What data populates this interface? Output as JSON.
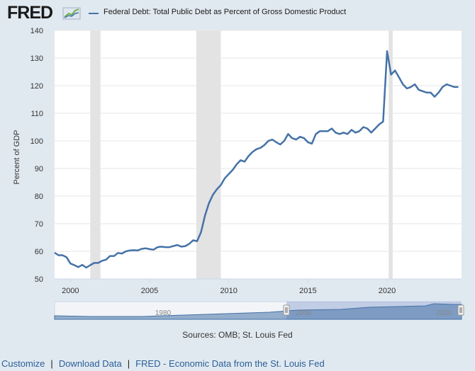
{
  "header": {
    "logo_text": "FRED",
    "title": "Federal Debt: Total Public Debt as Percent of Gross Domestic Product"
  },
  "footer": {
    "sources": "Sources: OMB; St. Louis Fed",
    "links": [
      "Customize",
      "Download Data",
      "FRED - Economic Data from the St. Louis Fed"
    ]
  },
  "colors": {
    "series": "#4572a7",
    "recession": "#e3e3e3",
    "background": "#e1e9f0",
    "plot": "#ffffff",
    "link": "#2a6099"
  },
  "chart_data": {
    "type": "line",
    "title": "Federal Debt: Total Public Debt as Percent of Gross Domestic Product",
    "ylabel": "Percent of GDP",
    "xlabel": "",
    "xlim": [
      1999.0,
      2024.7
    ],
    "ylim": [
      50,
      140
    ],
    "yticks": [
      50,
      60,
      70,
      80,
      90,
      100,
      110,
      120,
      130,
      140
    ],
    "xticks": [
      2000,
      2005,
      2010,
      2015,
      2020
    ],
    "grid": true,
    "recessions": [
      [
        2001.25,
        2001.9
      ],
      [
        2007.95,
        2009.5
      ],
      [
        2020.1,
        2020.35
      ]
    ],
    "series": [
      {
        "name": "Federal Debt: Total Public Debt as Percent of Gross Domestic Product",
        "x": [
          1999.0,
          1999.25,
          1999.5,
          1999.75,
          2000.0,
          2000.25,
          2000.5,
          2000.75,
          2001.0,
          2001.25,
          2001.5,
          2001.75,
          2002.0,
          2002.25,
          2002.5,
          2002.75,
          2003.0,
          2003.25,
          2003.5,
          2003.75,
          2004.0,
          2004.25,
          2004.5,
          2004.75,
          2005.0,
          2005.25,
          2005.5,
          2005.75,
          2006.0,
          2006.25,
          2006.5,
          2006.75,
          2007.0,
          2007.25,
          2007.5,
          2007.75,
          2008.0,
          2008.25,
          2008.5,
          2008.75,
          2009.0,
          2009.25,
          2009.5,
          2009.75,
          2010.0,
          2010.25,
          2010.5,
          2010.75,
          2011.0,
          2011.25,
          2011.5,
          2011.75,
          2012.0,
          2012.25,
          2012.5,
          2012.75,
          2013.0,
          2013.25,
          2013.5,
          2013.75,
          2014.0,
          2014.25,
          2014.5,
          2014.75,
          2015.0,
          2015.25,
          2015.5,
          2015.75,
          2016.0,
          2016.25,
          2016.5,
          2016.75,
          2017.0,
          2017.25,
          2017.5,
          2017.75,
          2018.0,
          2018.25,
          2018.5,
          2018.75,
          2019.0,
          2019.25,
          2019.5,
          2019.75,
          2020.0,
          2020.25,
          2020.5,
          2020.75,
          2021.0,
          2021.25,
          2021.5,
          2021.75,
          2022.0,
          2022.25,
          2022.5,
          2022.75,
          2023.0,
          2023.25,
          2023.5,
          2023.75,
          2024.0,
          2024.25,
          2024.5
        ],
        "y": [
          59.5,
          58.6,
          58.6,
          57.9,
          55.6,
          55.0,
          54.3,
          55.1,
          54.1,
          55.0,
          55.8,
          55.8,
          56.6,
          57.0,
          58.3,
          58.3,
          59.4,
          59.2,
          60.0,
          60.3,
          60.4,
          60.3,
          60.9,
          61.1,
          60.8,
          60.6,
          61.5,
          61.7,
          61.5,
          61.5,
          61.9,
          62.3,
          61.7,
          61.9,
          62.7,
          64.0,
          63.7,
          67.0,
          73.0,
          77.5,
          80.5,
          82.5,
          84.0,
          86.5,
          88.0,
          89.5,
          91.5,
          93.0,
          92.5,
          94.5,
          96.0,
          97.0,
          97.5,
          98.5,
          100.0,
          100.5,
          99.5,
          98.7,
          100.0,
          102.5,
          101.0,
          100.5,
          101.5,
          101.0,
          99.5,
          99.0,
          102.5,
          103.5,
          103.5,
          103.5,
          104.5,
          103.0,
          102.5,
          103.0,
          102.5,
          104.0,
          103.0,
          103.5,
          105.0,
          104.5,
          103.0,
          104.5,
          106.0,
          107.0,
          132.5,
          124.0,
          125.5,
          123.0,
          120.5,
          119.0,
          119.5,
          120.5,
          118.5,
          118.0,
          117.5,
          117.5,
          116.0,
          117.5,
          119.5,
          120.5,
          120.0,
          119.5,
          119.5
        ]
      }
    ]
  }
}
